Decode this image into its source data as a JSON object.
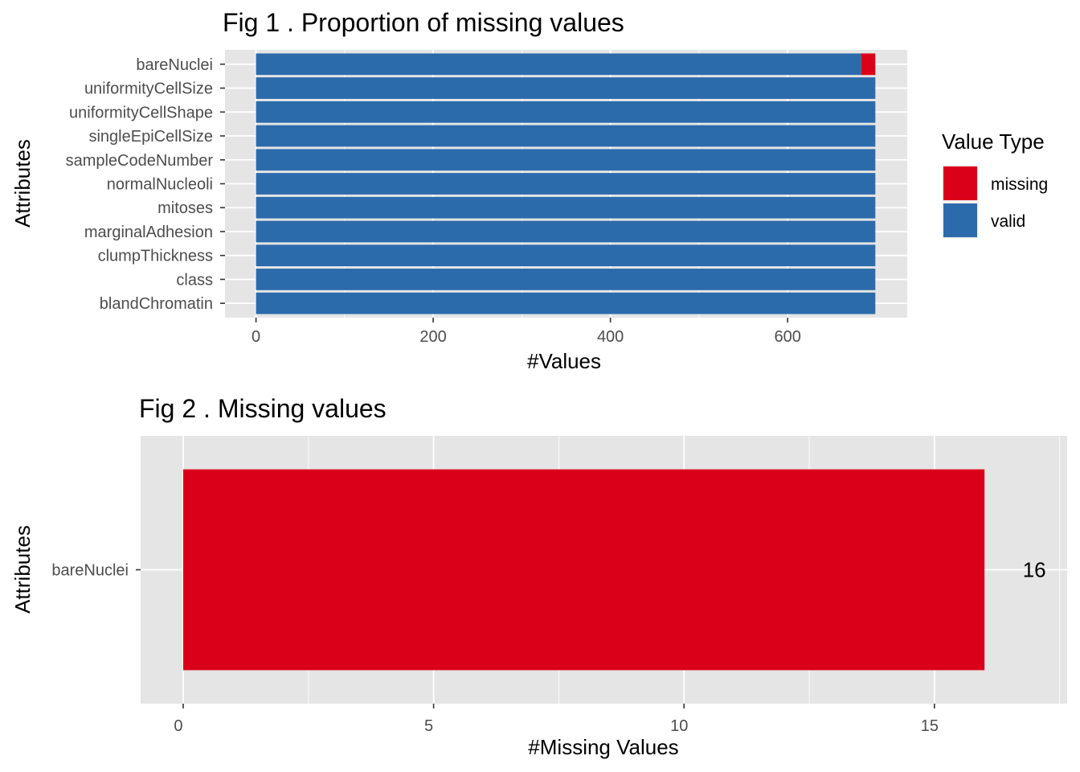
{
  "chart_data": [
    {
      "type": "bar",
      "orientation": "horizontal",
      "stacked": true,
      "title": "Fig 1 . Proportion of missing values",
      "xlabel": "#Values",
      "ylabel": "Attributes",
      "xlim": [
        -35,
        735
      ],
      "xticks": [
        0,
        200,
        400,
        600
      ],
      "xtick_labels": [
        "0",
        "200",
        "400",
        "600"
      ],
      "grid": true,
      "categories": [
        "bareNuclei",
        "uniformityCellSize",
        "uniformityCellShape",
        "singleEpiCellSize",
        "sampleCodeNumber",
        "normalNucleoli",
        "mitoses",
        "marginalAdhesion",
        "clumpThickness",
        "class",
        "blandChromatin"
      ],
      "series": [
        {
          "name": "valid",
          "color": "#2c6bab",
          "values": [
            683,
            699,
            699,
            699,
            699,
            699,
            699,
            699,
            699,
            699,
            699
          ]
        },
        {
          "name": "missing",
          "color": "#db0019",
          "values": [
            16,
            0,
            0,
            0,
            0,
            0,
            0,
            0,
            0,
            0,
            0
          ]
        }
      ],
      "legend": {
        "title": "Value Type",
        "placement": "right",
        "entries": [
          {
            "label": "missing",
            "color": "#db0019"
          },
          {
            "label": "valid",
            "color": "#2c6bab"
          }
        ]
      }
    },
    {
      "type": "bar",
      "orientation": "horizontal",
      "title": "Fig 2 . Missing values",
      "xlabel": "#Missing Values",
      "ylabel": "Attributes",
      "xlim": [
        -0.85,
        17.65
      ],
      "xticks": [
        0,
        5,
        10,
        15
      ],
      "xtick_labels": [
        "0",
        "5",
        "10",
        "15"
      ],
      "grid": true,
      "categories": [
        "bareNuclei"
      ],
      "values": [
        16
      ],
      "data_labels": [
        "16"
      ],
      "color": "#db0019"
    }
  ],
  "colors": {
    "panel_bg": "#e5e5e5",
    "grid": "#ffffff",
    "missing": "#db0019",
    "valid": "#2c6bab"
  }
}
